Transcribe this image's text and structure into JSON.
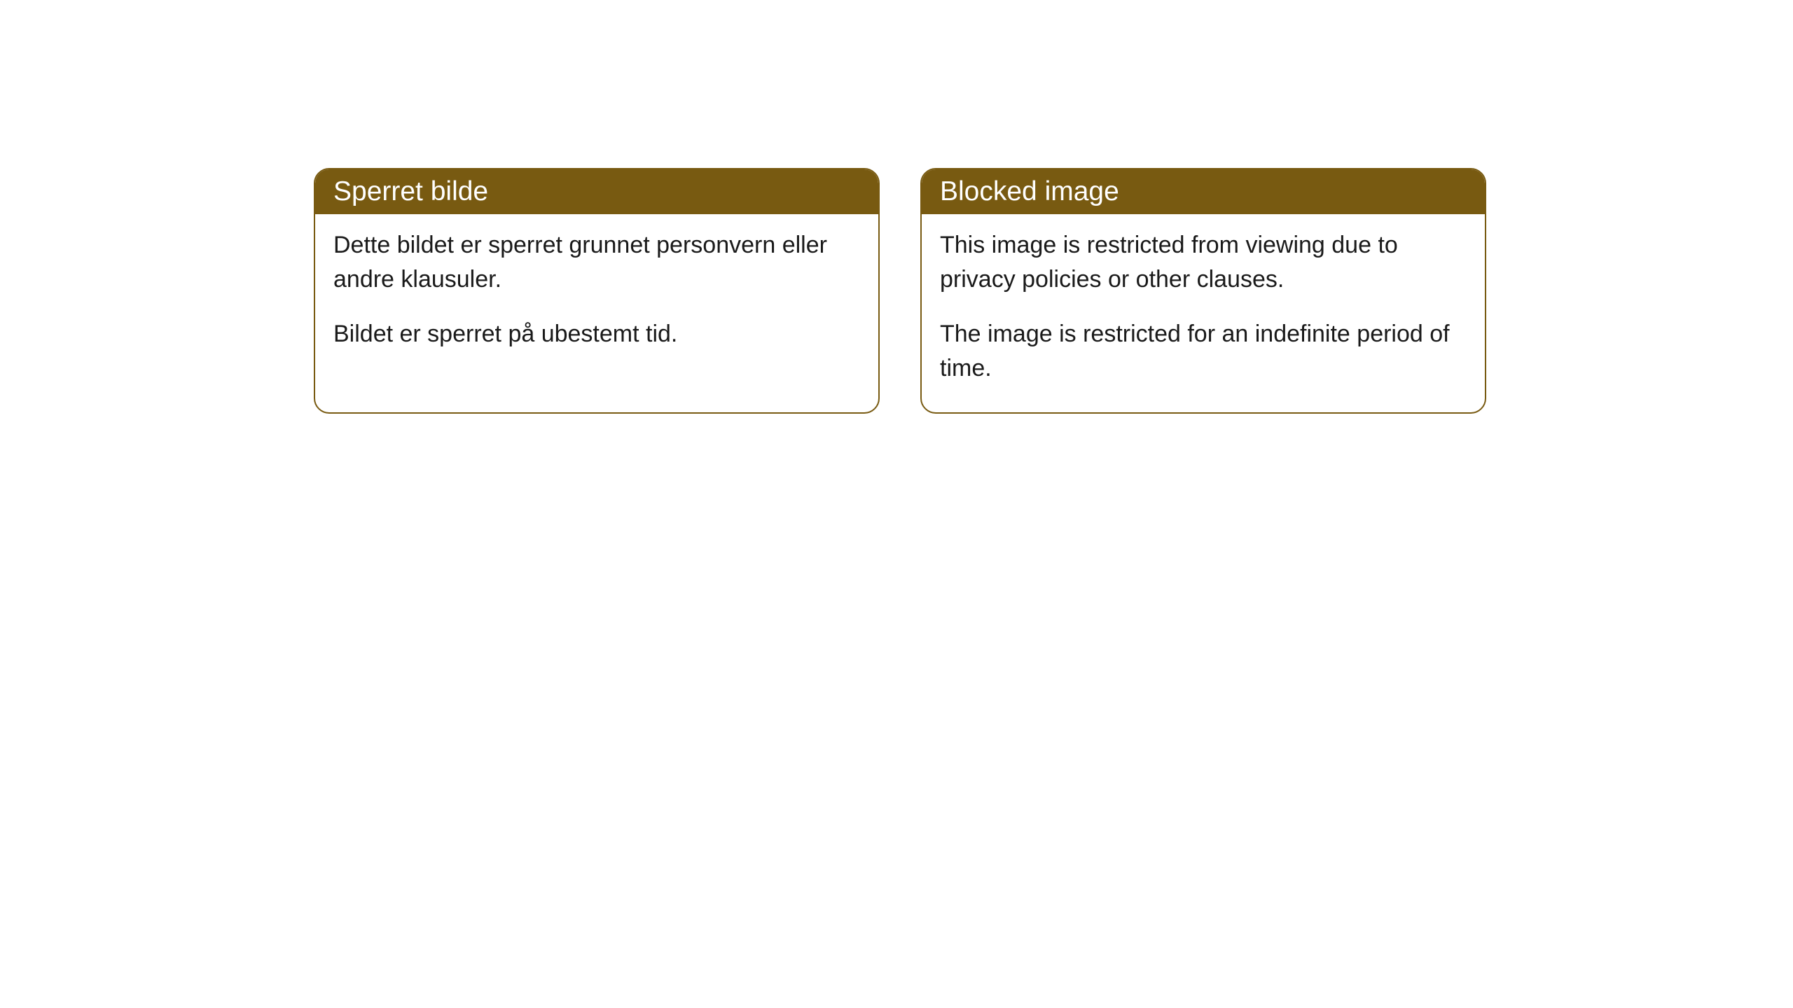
{
  "cards": [
    {
      "title": "Sperret bilde",
      "paragraph1": "Dette bildet er sperret grunnet personvern eller andre klausuler.",
      "paragraph2": "Bildet er sperret på ubestemt tid."
    },
    {
      "title": "Blocked image",
      "paragraph1": "This image is restricted from viewing due to privacy policies or other clauses.",
      "paragraph2": "The image is restricted for an indefinite period of time."
    }
  ],
  "styling": {
    "header_background": "#785a11",
    "header_text_color": "#ffffff",
    "border_color": "#785a11",
    "body_background": "#ffffff",
    "body_text_color": "#1a1a1a",
    "border_radius": 22,
    "title_fontsize": 39,
    "body_fontsize": 34
  }
}
